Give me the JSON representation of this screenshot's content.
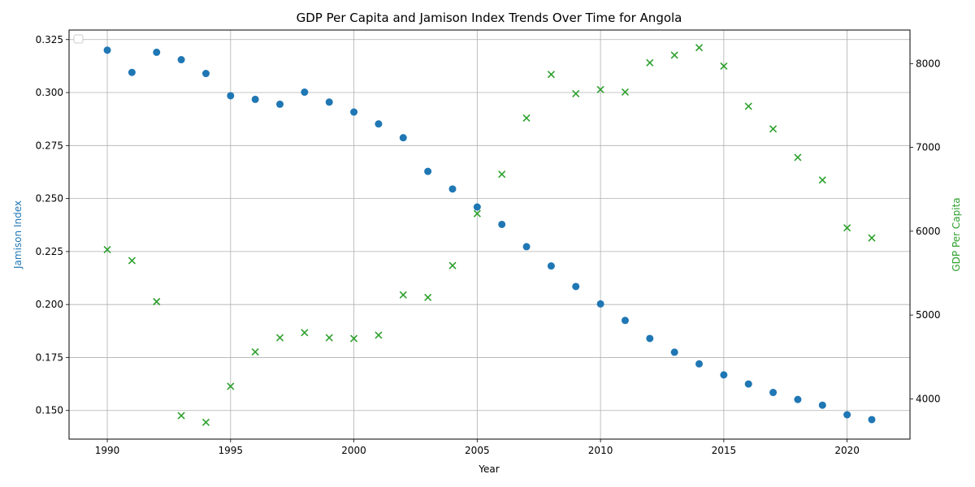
{
  "chart_data": {
    "type": "scatter",
    "title": "GDP Per Capita and Jamison Index Trends Over Time for Angola",
    "xlabel": "Year",
    "ylabel_left": "Jamison Index",
    "ylabel_right": "GDP Per Capita",
    "xlim": [
      1988.45,
      1992.55
    ],
    "x": [
      1990,
      1991,
      1992,
      1993,
      1994,
      1995,
      1996,
      1997,
      1998,
      1999,
      2000,
      2001,
      2002,
      2003,
      2004,
      2005,
      2006,
      2007,
      2008,
      2009,
      2010,
      2011,
      2012,
      2013,
      2014,
      2015,
      2016,
      2017,
      2018,
      2019,
      2020,
      2021
    ],
    "x_ticks": [
      1990,
      1995,
      2000,
      2005,
      2010,
      2015,
      2020
    ],
    "left_axis": {
      "ylim": [
        0.1365,
        0.3295
      ],
      "ticks": [
        0.15,
        0.175,
        0.2,
        0.225,
        0.25,
        0.275,
        0.3,
        0.325
      ],
      "tick_labels": [
        "0.150",
        "0.175",
        "0.200",
        "0.225",
        "0.250",
        "0.275",
        "0.300",
        "0.325"
      ]
    },
    "right_axis": {
      "ylim": [
        3520,
        8400
      ],
      "ticks": [
        4000,
        5000,
        6000,
        7000,
        8000
      ],
      "tick_labels": [
        "4000",
        "5000",
        "6000",
        "7000",
        "8000"
      ]
    },
    "grid": true,
    "legend": "top-left",
    "series": [
      {
        "name": "",
        "axis": "left",
        "marker": "circle",
        "color": "#1f77b4",
        "values": [
          0.32,
          0.3095,
          0.319,
          0.3155,
          0.309,
          0.2985,
          0.2968,
          0.2945,
          0.3002,
          0.2955,
          0.2908,
          0.2852,
          0.2787,
          0.2628,
          0.2545,
          0.246,
          0.2378,
          0.2273,
          0.2182,
          0.2085,
          0.2003,
          0.1925,
          0.184,
          0.1775,
          0.172,
          0.1668,
          0.1625,
          0.1585,
          0.1552,
          0.1525,
          0.148,
          0.1457
        ]
      },
      {
        "name": "",
        "axis": "right",
        "marker": "x",
        "color": "#2ca02c",
        "values": [
          5780,
          5650,
          5160,
          3800,
          3720,
          4150,
          4560,
          4730,
          4790,
          4730,
          4720,
          4760,
          5240,
          5210,
          5590,
          6210,
          6680,
          7350,
          7870,
          7640,
          7690,
          7660,
          8010,
          8100,
          8190,
          7970,
          7490,
          7220,
          6880,
          6610,
          6040,
          5920
        ]
      }
    ]
  }
}
